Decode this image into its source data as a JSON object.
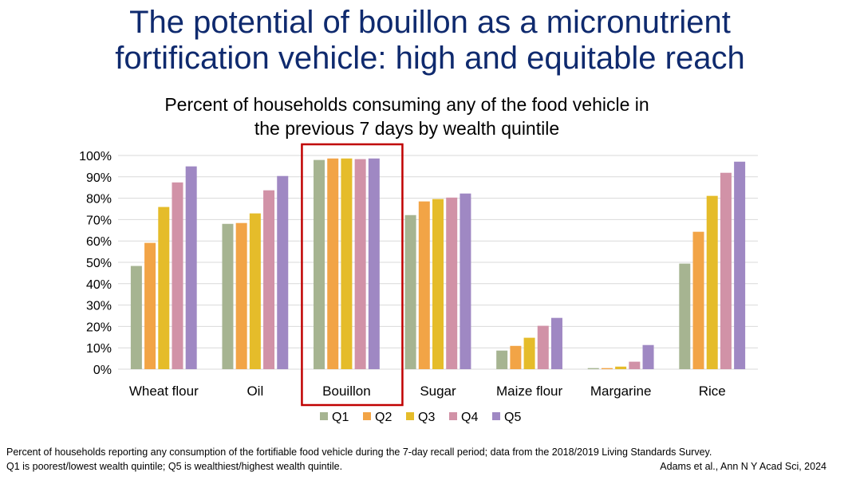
{
  "title_line1": "The potential of bouillon as a micronutrient",
  "title_line2": "fortification vehicle: high and equitable reach",
  "chart_data": {
    "type": "bar",
    "title": "Percent of households consuming any of the food vehicle in the previous 7 days by wealth quintile",
    "subtitle_line1": "Percent of households consuming any of the food vehicle in",
    "subtitle_line2": "the previous 7 days by wealth quintile",
    "categories": [
      "Wheat flour",
      "Oil",
      "Bouillon",
      "Sugar",
      "Maize flour",
      "Margarine",
      "Rice"
    ],
    "series": [
      {
        "name": "Q1",
        "color": "#a6b491",
        "values": [
          48.3,
          68.0,
          97.9,
          72.1,
          8.7,
          0.5,
          49.4
        ]
      },
      {
        "name": "Q2",
        "color": "#f2a446",
        "values": [
          59.1,
          68.4,
          98.6,
          78.5,
          10.9,
          0.5,
          64.3
        ]
      },
      {
        "name": "Q3",
        "color": "#e5bc2a",
        "values": [
          75.9,
          72.9,
          98.6,
          79.6,
          14.7,
          1.2,
          81.1
        ]
      },
      {
        "name": "Q4",
        "color": "#d192a7",
        "values": [
          87.4,
          83.7,
          98.3,
          80.3,
          20.3,
          3.5,
          91.9
        ]
      },
      {
        "name": "Q5",
        "color": "#9f88c3",
        "values": [
          94.9,
          90.4,
          98.6,
          82.2,
          24.0,
          11.3,
          97.1
        ]
      }
    ],
    "yticks": [
      "0%",
      "10%",
      "20%",
      "30%",
      "40%",
      "50%",
      "60%",
      "70%",
      "80%",
      "90%",
      "100%"
    ],
    "ylim": [
      0,
      100
    ],
    "grid": true,
    "legend": "bottom",
    "highlight": "Bouillon",
    "highlight_color": "#c00000"
  },
  "footnote_line1": "Percent of households reporting any consumption of the fortifiable food vehicle during the 7-day recall period; data from the 2018/2019 Living Standards Survey.",
  "footnote_line2": "Q1 is poorest/lowest wealth quintile; Q5 is wealthiest/highest wealth quintile.",
  "citation": "Adams et al., Ann N Y Acad Sci, 2024"
}
